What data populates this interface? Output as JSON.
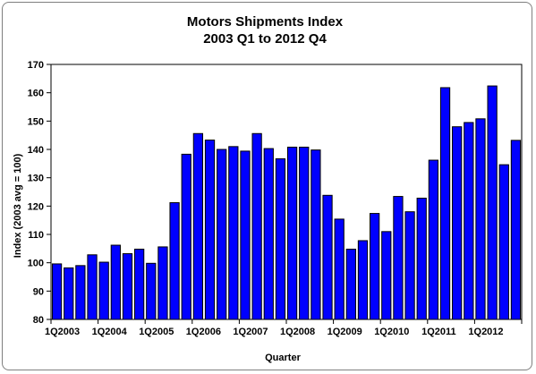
{
  "chart_data": {
    "type": "bar",
    "title": "Motors Shipments Index",
    "subtitle": "2003 Q1 to 2012 Q4",
    "xlabel": "Quarter",
    "ylabel": "Index (2003 avg = 100)",
    "ylim": [
      80,
      170
    ],
    "yticks": [
      80,
      90,
      100,
      110,
      120,
      130,
      140,
      150,
      160,
      170
    ],
    "grid": false,
    "bar_color": "#0000FF",
    "categories": [
      "1Q2003",
      "2Q2003",
      "3Q2003",
      "4Q2003",
      "1Q2004",
      "2Q2004",
      "3Q2004",
      "4Q2004",
      "1Q2005",
      "2Q2005",
      "3Q2005",
      "4Q2005",
      "1Q2006",
      "2Q2006",
      "3Q2006",
      "4Q2006",
      "1Q2007",
      "2Q2007",
      "3Q2007",
      "4Q2007",
      "1Q2008",
      "2Q2008",
      "3Q2008",
      "4Q2008",
      "1Q2009",
      "2Q2009",
      "3Q2009",
      "4Q2009",
      "1Q2010",
      "2Q2010",
      "3Q2010",
      "4Q2010",
      "1Q2011",
      "2Q2011",
      "3Q2011",
      "4Q2011",
      "1Q2012",
      "2Q2012",
      "3Q2012",
      "4Q2012"
    ],
    "visible_x_tick_labels": [
      "1Q2003",
      "1Q2004",
      "1Q2005",
      "1Q2006",
      "1Q2007",
      "1Q2008",
      "1Q2009",
      "1Q2010",
      "1Q2011",
      "1Q2012"
    ],
    "values": [
      99.6,
      98.2,
      99.0,
      102.8,
      100.2,
      106.2,
      103.2,
      104.8,
      99.8,
      105.6,
      121.2,
      138.3,
      145.6,
      143.3,
      140.0,
      141.0,
      139.4,
      145.6,
      140.3,
      136.7,
      140.8,
      140.8,
      139.8,
      123.8,
      115.4,
      104.8,
      107.8,
      117.4,
      111.0,
      123.4,
      118.0,
      122.8,
      136.2,
      161.8,
      148.0,
      149.5,
      150.8,
      162.4,
      134.6,
      143.2
    ]
  }
}
